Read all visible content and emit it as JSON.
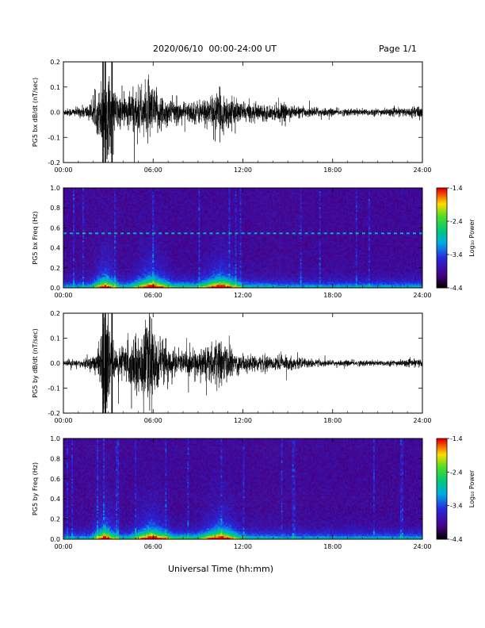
{
  "header": {
    "title": "2020/06/10  00:00-24:00 UT",
    "page": "Page 1/1"
  },
  "footer": {
    "xlabel": "Universal Time (hh:mm)"
  },
  "colorbar": {
    "label": "Log₁₀ Power",
    "ticks": [
      "-1.4",
      "-2.4",
      "-3.4",
      "-4.4"
    ],
    "tick_values": [
      -1.4,
      -2.4,
      -3.4,
      -4.4
    ],
    "range": [
      -4.4,
      -1.4
    ]
  },
  "chart_data": [
    {
      "type": "line",
      "name": "pg5-bx-waveform",
      "ylabel": "PG5 bx dB/dt (nT/sec)",
      "xlabel": "",
      "xlim": [
        0,
        24
      ],
      "ylim": [
        -0.2,
        0.2
      ],
      "x_ticks": [
        "00:00",
        "06:00",
        "12:00",
        "18:00",
        "24:00"
      ],
      "y_ticks": [
        "0.2",
        "0.1",
        "0.0",
        "-0.1",
        "-0.2"
      ],
      "envelope": {
        "x_hours": [
          0,
          1,
          2,
          2.5,
          2.7,
          2.9,
          3.2,
          3.6,
          4,
          4.5,
          5,
          5.5,
          5.8,
          6,
          6.5,
          7,
          8,
          9,
          10,
          10.5,
          11,
          11.5,
          12,
          13,
          14,
          14.5,
          15,
          16,
          17,
          18,
          20,
          22,
          23.6,
          23.8,
          24
        ],
        "amplitude": [
          0.015,
          0.02,
          0.04,
          0.12,
          0.22,
          0.22,
          0.1,
          0.08,
          0.07,
          0.09,
          0.1,
          0.11,
          0.13,
          0.1,
          0.08,
          0.06,
          0.04,
          0.05,
          0.07,
          0.09,
          0.07,
          0.05,
          0.04,
          0.035,
          0.03,
          0.04,
          0.03,
          0.02,
          0.02,
          0.015,
          0.015,
          0.015,
          0.02,
          0.04,
          0.015
        ]
      }
    },
    {
      "type": "heatmap",
      "name": "pg5-bx-spectrogram",
      "ylabel": "PG5 bx Freq (Hz)",
      "xlabel": "",
      "xlim": [
        0,
        24
      ],
      "ylim": [
        0,
        1.0
      ],
      "x_ticks": [
        "00:00",
        "06:00",
        "12:00",
        "18:00",
        "24:00"
      ],
      "y_ticks": [
        "1.0",
        "0.8",
        "0.6",
        "0.4",
        "0.2",
        "0.0"
      ],
      "zlim": [
        -4.4,
        -1.4
      ],
      "features": {
        "narrowband_line_hz": 0.55,
        "enhanced_intervals_hours": [
          [
            2.4,
            3.2
          ],
          [
            5.0,
            6.8
          ],
          [
            9.5,
            11.5
          ]
        ]
      }
    },
    {
      "type": "line",
      "name": "pg5-by-waveform",
      "ylabel": "PG5 by dB/dt (nT/sec)",
      "xlabel": "",
      "xlim": [
        0,
        24
      ],
      "ylim": [
        -0.2,
        0.2
      ],
      "x_ticks": [
        "00:00",
        "06:00",
        "12:00",
        "18:00",
        "24:00"
      ],
      "y_ticks": [
        "0.2",
        "0.1",
        "0.0",
        "-0.1",
        "-0.2"
      ],
      "envelope": {
        "x_hours": [
          0,
          1,
          2,
          2.5,
          2.7,
          2.9,
          3.2,
          3.6,
          4,
          4.5,
          5,
          5.5,
          5.8,
          6,
          6.5,
          7,
          8,
          9,
          10,
          10.5,
          11,
          11.5,
          12,
          13,
          14,
          14.5,
          15,
          16,
          17,
          18,
          20,
          22,
          23.6,
          23.8,
          24
        ],
        "amplitude": [
          0.012,
          0.015,
          0.03,
          0.1,
          0.22,
          0.22,
          0.08,
          0.07,
          0.08,
          0.1,
          0.12,
          0.15,
          0.2,
          0.14,
          0.1,
          0.07,
          0.05,
          0.06,
          0.08,
          0.1,
          0.07,
          0.05,
          0.04,
          0.03,
          0.03,
          0.04,
          0.03,
          0.02,
          0.015,
          0.012,
          0.012,
          0.012,
          0.015,
          0.02,
          0.012
        ]
      }
    },
    {
      "type": "heatmap",
      "name": "pg5-by-spectrogram",
      "ylabel": "PG5 by Freq (Hz)",
      "xlabel": "",
      "xlim": [
        0,
        24
      ],
      "ylim": [
        0,
        1.0
      ],
      "x_ticks": [
        "00:00",
        "06:00",
        "12:00",
        "18:00",
        "24:00"
      ],
      "y_ticks": [
        "1.0",
        "0.8",
        "0.6",
        "0.4",
        "0.2",
        "0.0"
      ],
      "zlim": [
        -4.4,
        -1.4
      ],
      "features": {
        "enhanced_intervals_hours": [
          [
            2.4,
            3.2
          ],
          [
            5.0,
            6.8
          ],
          [
            9.5,
            11.5
          ]
        ]
      }
    }
  ]
}
